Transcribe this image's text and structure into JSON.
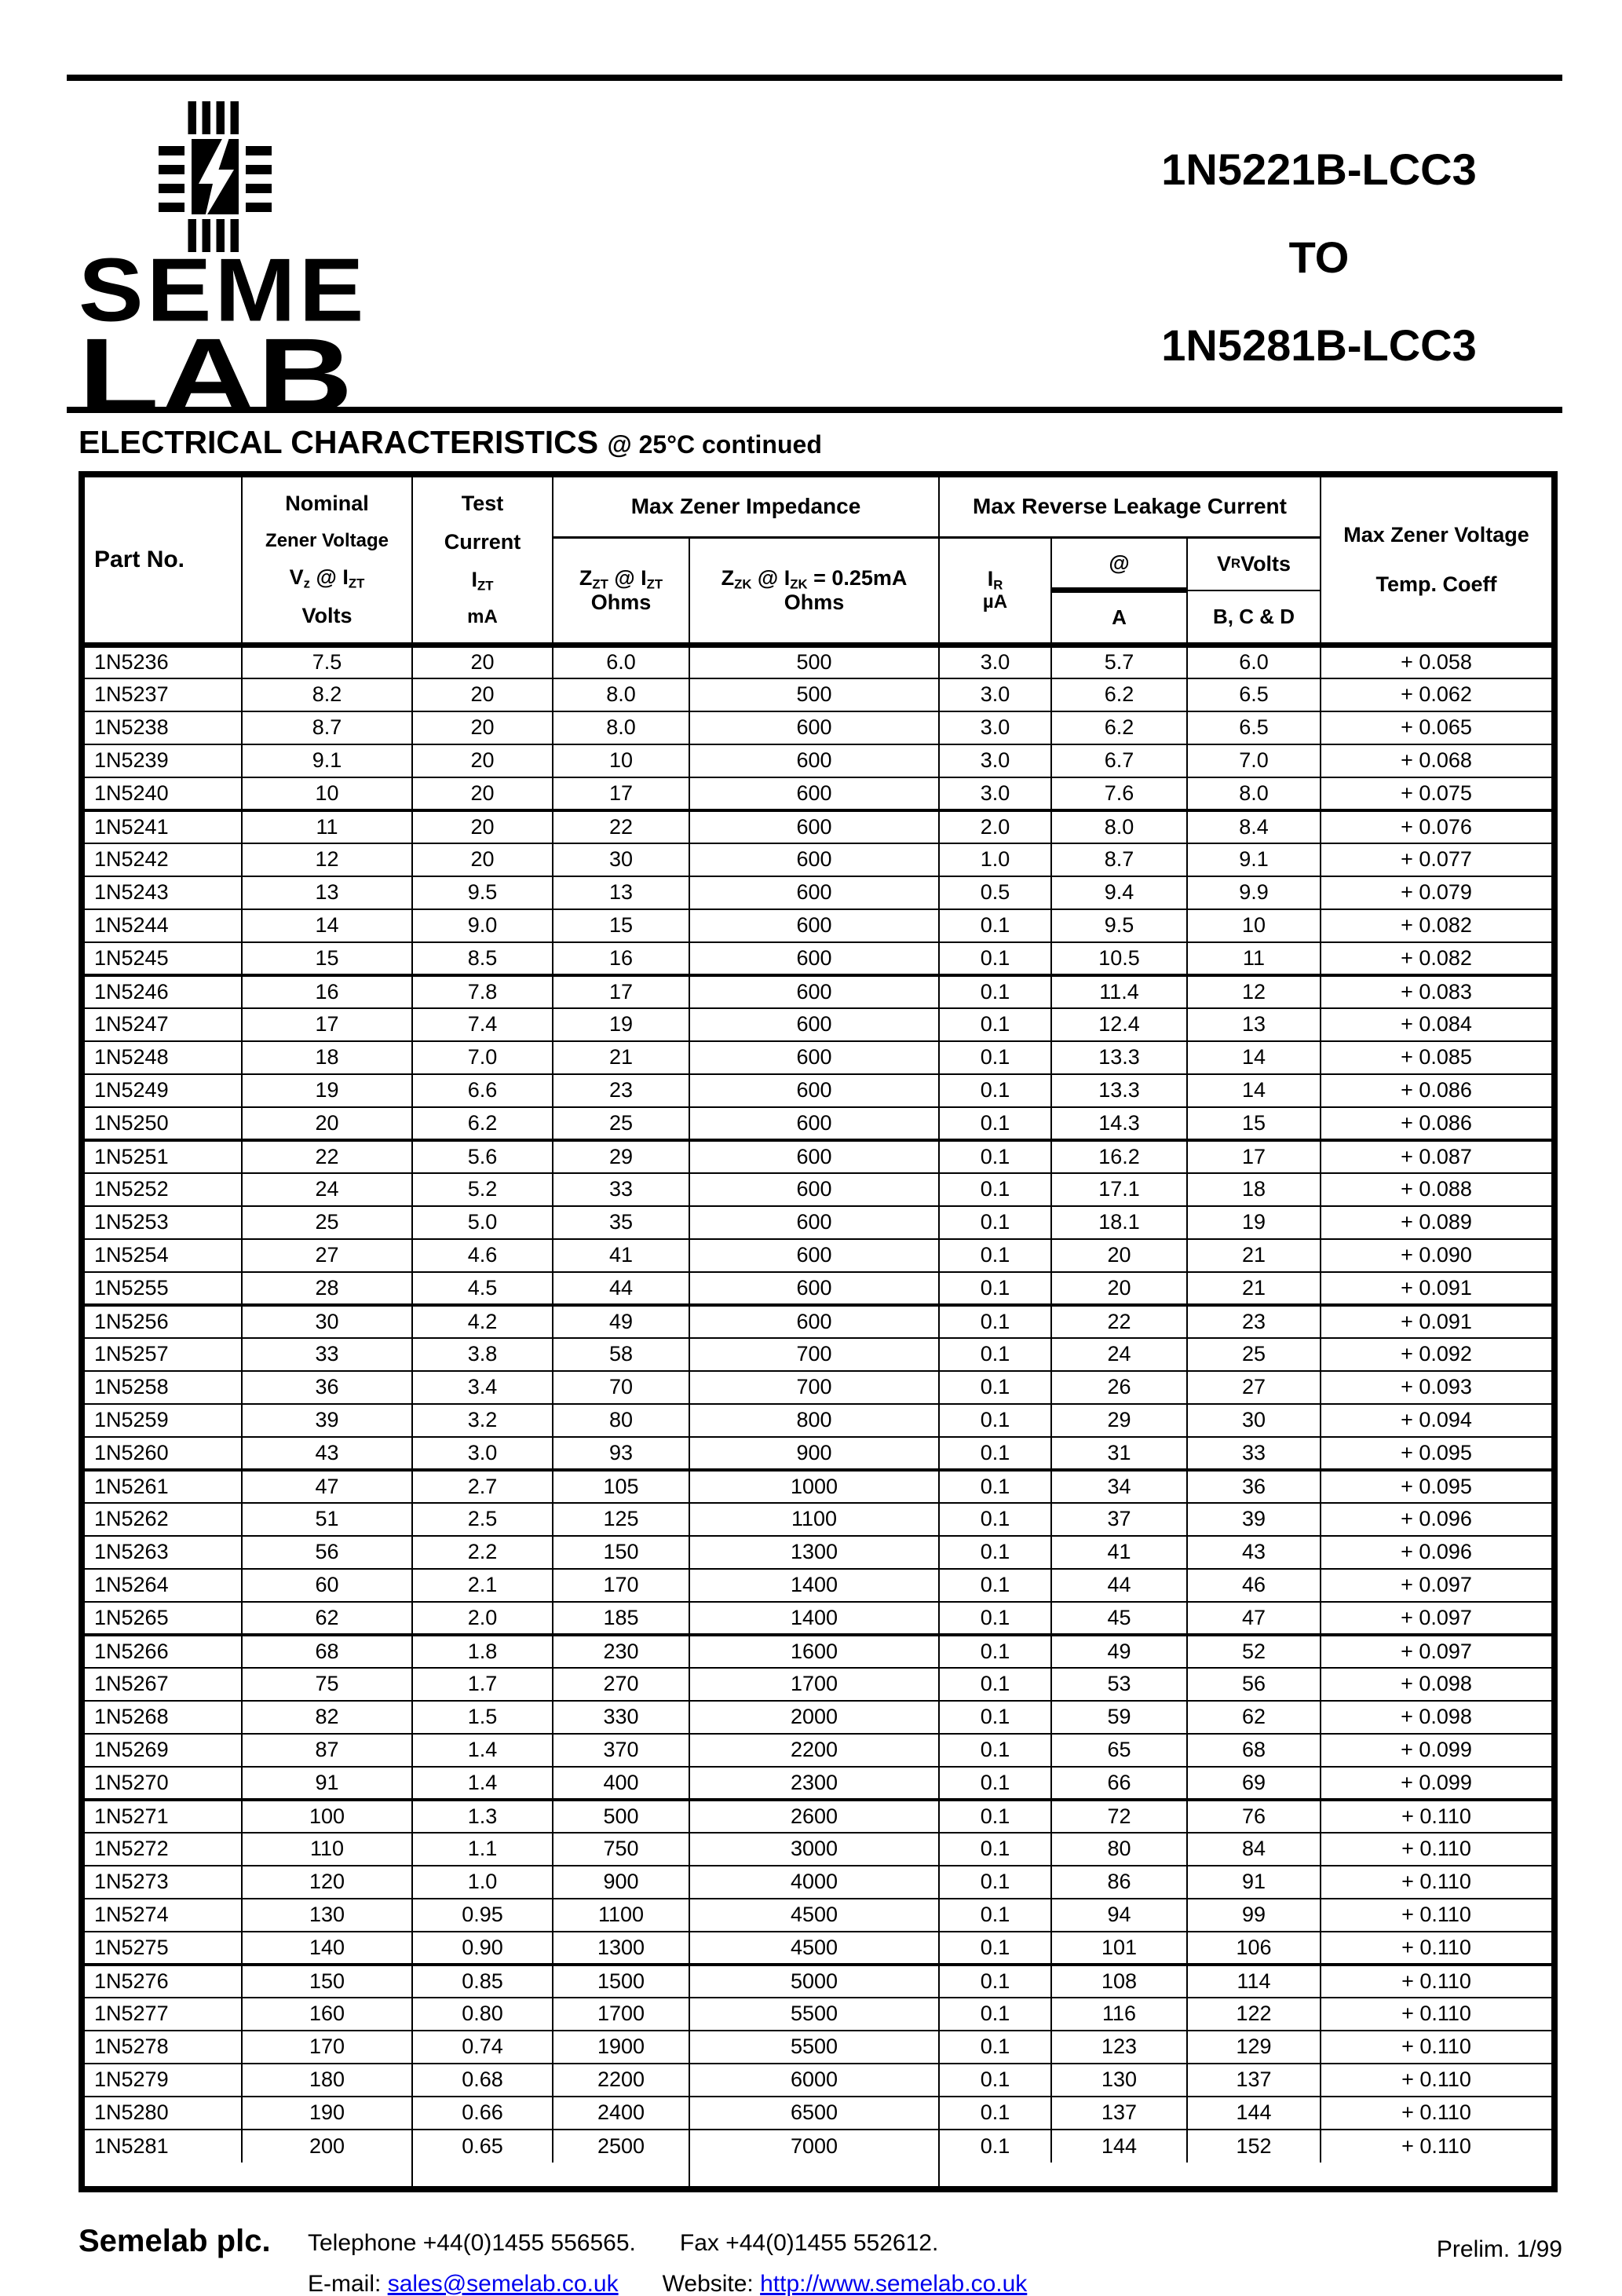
{
  "colors": {
    "ink": "#000000",
    "paper": "#ffffff",
    "link": "#0000ee"
  },
  "header": {
    "logo_icon": "chip-lightning-icon",
    "logo_line1": "SEME",
    "logo_line2": "LAB",
    "title_lines": [
      "1N5221B-LCC3",
      "TO",
      "1N5281B-LCC3"
    ]
  },
  "section": {
    "title": "ELECTRICAL CHARACTERISTICS",
    "subtitle": "@ 25°C continued"
  },
  "table": {
    "header": {
      "part_no": "Part No.",
      "col_nominal": [
        "Nominal",
        "Zener Voltage",
        "V~z~ @ I~ZT~",
        "Volts"
      ],
      "col_test": [
        "Test",
        "Current",
        "I~ZT~",
        "mA"
      ],
      "impedance_group": "Max Zener Impedance",
      "leakage_group": "Max Reverse Leakage Current",
      "zzt": "Z~ZT~ @ I~ZT~",
      "zzt_unit": "Ohms",
      "zzk": "Z~ZK~ @ I~ZK~  = 0.25mA",
      "zzk_unit": "Ohms",
      "ir": "I~R~",
      "ir_unit": "µA",
      "at": "@",
      "at_unit": "A",
      "vr": "V~R~  Volts",
      "vr_unit": "B, C & D",
      "temp": [
        "Max Zener Voltage",
        "Temp. Coeff"
      ]
    },
    "group_end_indices": [
      4,
      9,
      14,
      19,
      24,
      29,
      34,
      39
    ],
    "rows": [
      [
        "1N5236",
        "7.5",
        "20",
        "6.0",
        "500",
        "3.0",
        "5.7",
        "6.0",
        "+ 0.058"
      ],
      [
        "1N5237",
        "8.2",
        "20",
        "8.0",
        "500",
        "3.0",
        "6.2",
        "6.5",
        "+ 0.062"
      ],
      [
        "1N5238",
        "8.7",
        "20",
        "8.0",
        "600",
        "3.0",
        "6.2",
        "6.5",
        "+ 0.065"
      ],
      [
        "1N5239",
        "9.1",
        "20",
        "10",
        "600",
        "3.0",
        "6.7",
        "7.0",
        "+ 0.068"
      ],
      [
        "1N5240",
        "10",
        "20",
        "17",
        "600",
        "3.0",
        "7.6",
        "8.0",
        "+ 0.075"
      ],
      [
        "1N5241",
        "11",
        "20",
        "22",
        "600",
        "2.0",
        "8.0",
        "8.4",
        "+ 0.076"
      ],
      [
        "1N5242",
        "12",
        "20",
        "30",
        "600",
        "1.0",
        "8.7",
        "9.1",
        "+ 0.077"
      ],
      [
        "1N5243",
        "13",
        "9.5",
        "13",
        "600",
        "0.5",
        "9.4",
        "9.9",
        "+ 0.079"
      ],
      [
        "1N5244",
        "14",
        "9.0",
        "15",
        "600",
        "0.1",
        "9.5",
        "10",
        "+ 0.082"
      ],
      [
        "1N5245",
        "15",
        "8.5",
        "16",
        "600",
        "0.1",
        "10.5",
        "11",
        "+ 0.082"
      ],
      [
        "1N5246",
        "16",
        "7.8",
        "17",
        "600",
        "0.1",
        "11.4",
        "12",
        "+ 0.083"
      ],
      [
        "1N5247",
        "17",
        "7.4",
        "19",
        "600",
        "0.1",
        "12.4",
        "13",
        "+ 0.084"
      ],
      [
        "1N5248",
        "18",
        "7.0",
        "21",
        "600",
        "0.1",
        "13.3",
        "14",
        "+ 0.085"
      ],
      [
        "1N5249",
        "19",
        "6.6",
        "23",
        "600",
        "0.1",
        "13.3",
        "14",
        "+ 0.086"
      ],
      [
        "1N5250",
        "20",
        "6.2",
        "25",
        "600",
        "0.1",
        "14.3",
        "15",
        "+ 0.086"
      ],
      [
        "1N5251",
        "22",
        "5.6",
        "29",
        "600",
        "0.1",
        "16.2",
        "17",
        "+ 0.087"
      ],
      [
        "1N5252",
        "24",
        "5.2",
        "33",
        "600",
        "0.1",
        "17.1",
        "18",
        "+ 0.088"
      ],
      [
        "1N5253",
        "25",
        "5.0",
        "35",
        "600",
        "0.1",
        "18.1",
        "19",
        "+ 0.089"
      ],
      [
        "1N5254",
        "27",
        "4.6",
        "41",
        "600",
        "0.1",
        "20",
        "21",
        "+ 0.090"
      ],
      [
        "1N5255",
        "28",
        "4.5",
        "44",
        "600",
        "0.1",
        "20",
        "21",
        "+ 0.091"
      ],
      [
        "1N5256",
        "30",
        "4.2",
        "49",
        "600",
        "0.1",
        "22",
        "23",
        "+ 0.091"
      ],
      [
        "1N5257",
        "33",
        "3.8",
        "58",
        "700",
        "0.1",
        "24",
        "25",
        "+ 0.092"
      ],
      [
        "1N5258",
        "36",
        "3.4",
        "70",
        "700",
        "0.1",
        "26",
        "27",
        "+ 0.093"
      ],
      [
        "1N5259",
        "39",
        "3.2",
        "80",
        "800",
        "0.1",
        "29",
        "30",
        "+ 0.094"
      ],
      [
        "1N5260",
        "43",
        "3.0",
        "93",
        "900",
        "0.1",
        "31",
        "33",
        "+ 0.095"
      ],
      [
        "1N5261",
        "47",
        "2.7",
        "105",
        "1000",
        "0.1",
        "34",
        "36",
        "+ 0.095"
      ],
      [
        "1N5262",
        "51",
        "2.5",
        "125",
        "1100",
        "0.1",
        "37",
        "39",
        "+ 0.096"
      ],
      [
        "1N5263",
        "56",
        "2.2",
        "150",
        "1300",
        "0.1",
        "41",
        "43",
        "+ 0.096"
      ],
      [
        "1N5264",
        "60",
        "2.1",
        "170",
        "1400",
        "0.1",
        "44",
        "46",
        "+ 0.097"
      ],
      [
        "1N5265",
        "62",
        "2.0",
        "185",
        "1400",
        "0.1",
        "45",
        "47",
        "+ 0.097"
      ],
      [
        "1N5266",
        "68",
        "1.8",
        "230",
        "1600",
        "0.1",
        "49",
        "52",
        "+ 0.097"
      ],
      [
        "1N5267",
        "75",
        "1.7",
        "270",
        "1700",
        "0.1",
        "53",
        "56",
        "+ 0.098"
      ],
      [
        "1N5268",
        "82",
        "1.5",
        "330",
        "2000",
        "0.1",
        "59",
        "62",
        "+ 0.098"
      ],
      [
        "1N5269",
        "87",
        "1.4",
        "370",
        "2200",
        "0.1",
        "65",
        "68",
        "+ 0.099"
      ],
      [
        "1N5270",
        "91",
        "1.4",
        "400",
        "2300",
        "0.1",
        "66",
        "69",
        "+ 0.099"
      ],
      [
        "1N5271",
        "100",
        "1.3",
        "500",
        "2600",
        "0.1",
        "72",
        "76",
        "+ 0.110"
      ],
      [
        "1N5272",
        "110",
        "1.1",
        "750",
        "3000",
        "0.1",
        "80",
        "84",
        "+ 0.110"
      ],
      [
        "1N5273",
        "120",
        "1.0",
        "900",
        "4000",
        "0.1",
        "86",
        "91",
        "+ 0.110"
      ],
      [
        "1N5274",
        "130",
        "0.95",
        "1100",
        "4500",
        "0.1",
        "94",
        "99",
        "+ 0.110"
      ],
      [
        "1N5275",
        "140",
        "0.90",
        "1300",
        "4500",
        "0.1",
        "101",
        "106",
        "+ 0.110"
      ],
      [
        "1N5276",
        "150",
        "0.85",
        "1500",
        "5000",
        "0.1",
        "108",
        "114",
        "+ 0.110"
      ],
      [
        "1N5277",
        "160",
        "0.80",
        "1700",
        "5500",
        "0.1",
        "116",
        "122",
        "+ 0.110"
      ],
      [
        "1N5278",
        "170",
        "0.74",
        "1900",
        "5500",
        "0.1",
        "123",
        "129",
        "+ 0.110"
      ],
      [
        "1N5279",
        "180",
        "0.68",
        "2200",
        "6000",
        "0.1",
        "130",
        "137",
        "+ 0.110"
      ],
      [
        "1N5280",
        "190",
        "0.66",
        "2400",
        "6500",
        "0.1",
        "137",
        "144",
        "+ 0.110"
      ],
      [
        "1N5281",
        "200",
        "0.65",
        "2500",
        "7000",
        "0.1",
        "144",
        "152",
        "+ 0.110"
      ]
    ]
  },
  "footer": {
    "company": "Semelab plc.",
    "telephone": "Telephone +44(0)1455 556565.",
    "fax": "Fax +44(0)1455 552612.",
    "email_label": "E-mail:",
    "email": "sales@semelab.co.uk",
    "website_label": "Website:",
    "website": "http://www.semelab.co.uk",
    "prelim": "Prelim. 1/99"
  }
}
